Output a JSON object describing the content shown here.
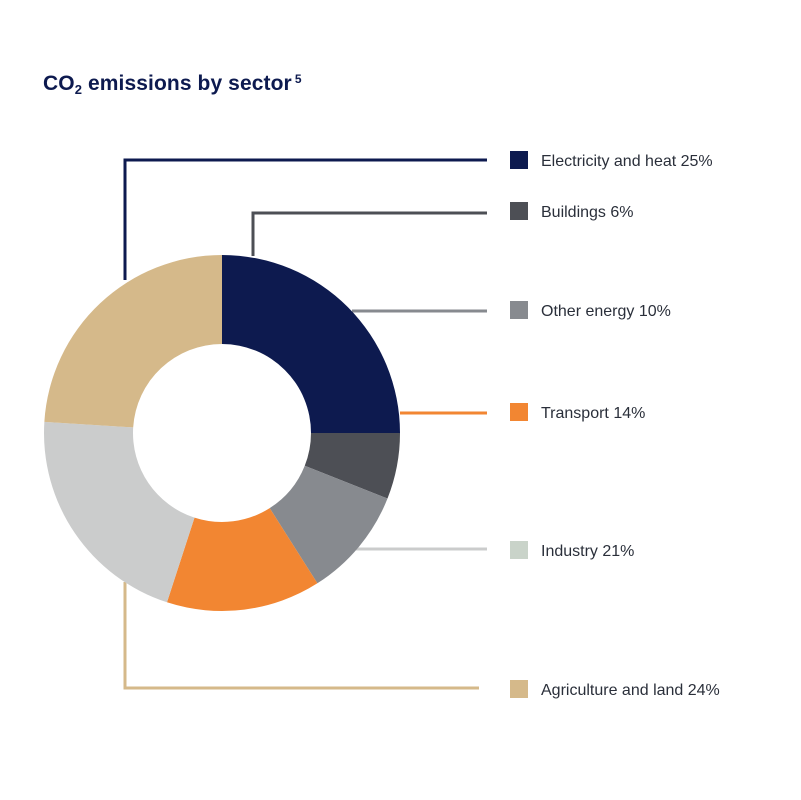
{
  "title": {
    "prefix": "CO",
    "subscript": "2",
    "main": " emissions by sector",
    "footnote": "5"
  },
  "chart_data": {
    "type": "pie",
    "donut": true,
    "unit": "%",
    "slices": [
      {
        "label": "Electricity and heat",
        "value": 25,
        "color": "#0d1a4f"
      },
      {
        "label": "Buildings",
        "value": 6,
        "color": "#4d4f55"
      },
      {
        "label": "Other energy",
        "value": 10,
        "color": "#878a8f"
      },
      {
        "label": "Transport",
        "value": 14,
        "color": "#f28632"
      },
      {
        "label": "Industry",
        "value": 21,
        "color": "#cbcccc"
      },
      {
        "label": "Agriculture and land",
        "value": 24,
        "color": "#d5b98a"
      }
    ],
    "legend_colors": [
      "#0d1a4f",
      "#4d4f55",
      "#878a8f",
      "#f28632",
      "#c9d3c9",
      "#d5b98a"
    ],
    "legend_placement": "right"
  }
}
